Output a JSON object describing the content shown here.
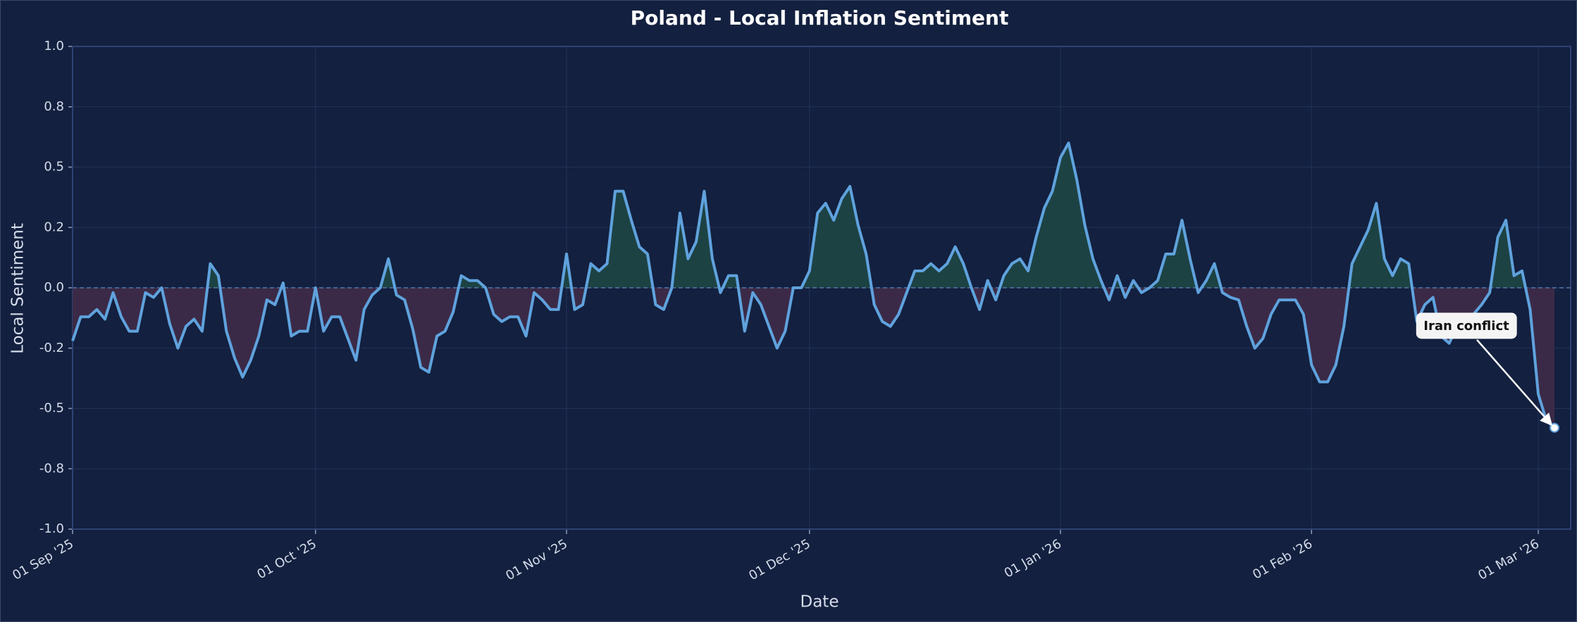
{
  "chart_data": {
    "type": "line",
    "title": "Poland - Local Inflation Sentiment",
    "x_label": "Date",
    "y_label": "Local Sentiment",
    "xlim": [
      "2025-09-01",
      "2026-03-05"
    ],
    "ylim": [
      -1,
      1
    ],
    "yticks": [
      {
        "value": -1,
        "label": "-1.0"
      },
      {
        "value": -0.75,
        "label": "-0.8"
      },
      {
        "value": -0.5,
        "label": "-0.5"
      },
      {
        "value": -0.25,
        "label": "-0.2"
      },
      {
        "value": 0,
        "label": "0.0"
      },
      {
        "value": 0.25,
        "label": "0.2"
      },
      {
        "value": 0.5,
        "label": "0.5"
      },
      {
        "value": 0.75,
        "label": "0.8"
      },
      {
        "value": 1,
        "label": "1.0"
      }
    ],
    "xticks": [
      {
        "value": "2025-09-01",
        "label": "01 Sep '25"
      },
      {
        "value": "2025-10-01",
        "label": "01 Oct '25"
      },
      {
        "value": "2025-11-01",
        "label": "01 Nov '25"
      },
      {
        "value": "2025-12-01",
        "label": "01 Dec '25"
      },
      {
        "value": "2026-01-01",
        "label": "01 Jan '26"
      },
      {
        "value": "2026-02-01",
        "label": "01 Feb '26"
      },
      {
        "value": "2026-03-01",
        "label": "01 Mar '26"
      }
    ],
    "grid": true,
    "positive_fill": "#1d4243",
    "negative_fill": "#3b2a47",
    "x": [
      "2025-09-01",
      "2025-09-02",
      "2025-09-03",
      "2025-09-04",
      "2025-09-05",
      "2025-09-06",
      "2025-09-07",
      "2025-09-08",
      "2025-09-09",
      "2025-09-10",
      "2025-09-11",
      "2025-09-12",
      "2025-09-13",
      "2025-09-14",
      "2025-09-15",
      "2025-09-16",
      "2025-09-17",
      "2025-09-18",
      "2025-09-19",
      "2025-09-20",
      "2025-09-21",
      "2025-09-22",
      "2025-09-23",
      "2025-09-24",
      "2025-09-25",
      "2025-09-26",
      "2025-09-27",
      "2025-09-28",
      "2025-09-29",
      "2025-09-30",
      "2025-10-01",
      "2025-10-02",
      "2025-10-03",
      "2025-10-04",
      "2025-10-05",
      "2025-10-06",
      "2025-10-07",
      "2025-10-08",
      "2025-10-09",
      "2025-10-10",
      "2025-10-11",
      "2025-10-12",
      "2025-10-13",
      "2025-10-14",
      "2025-10-15",
      "2025-10-16",
      "2025-10-17",
      "2025-10-18",
      "2025-10-19",
      "2025-10-20",
      "2025-10-21",
      "2025-10-22",
      "2025-10-23",
      "2025-10-24",
      "2025-10-25",
      "2025-10-26",
      "2025-10-27",
      "2025-10-28",
      "2025-10-29",
      "2025-10-30",
      "2025-10-31",
      "2025-11-01",
      "2025-11-02",
      "2025-11-03",
      "2025-11-04",
      "2025-11-05",
      "2025-11-06",
      "2025-11-07",
      "2025-11-08",
      "2025-11-09",
      "2025-11-10",
      "2025-11-11",
      "2025-11-12",
      "2025-11-13",
      "2025-11-14",
      "2025-11-15",
      "2025-11-16",
      "2025-11-17",
      "2025-11-18",
      "2025-11-19",
      "2025-11-20",
      "2025-11-21",
      "2025-11-22",
      "2025-11-23",
      "2025-11-24",
      "2025-11-25",
      "2025-11-26",
      "2025-11-27",
      "2025-11-28",
      "2025-11-29",
      "2025-11-30",
      "2025-12-01",
      "2025-12-02",
      "2025-12-03",
      "2025-12-04",
      "2025-12-05",
      "2025-12-06",
      "2025-12-07",
      "2025-12-08",
      "2025-12-09",
      "2025-12-10",
      "2025-12-11",
      "2025-12-12",
      "2025-12-13",
      "2025-12-14",
      "2025-12-15",
      "2025-12-16",
      "2025-12-17",
      "2025-12-18",
      "2025-12-19",
      "2025-12-20",
      "2025-12-21",
      "2025-12-22",
      "2025-12-23",
      "2025-12-24",
      "2025-12-25",
      "2025-12-26",
      "2025-12-27",
      "2025-12-28",
      "2025-12-29",
      "2025-12-30",
      "2025-12-31",
      "2026-01-01",
      "2026-01-02",
      "2026-01-03",
      "2026-01-04",
      "2026-01-05",
      "2026-01-06",
      "2026-01-07",
      "2026-01-08",
      "2026-01-09",
      "2026-01-10",
      "2026-01-11",
      "2026-01-12",
      "2026-01-13",
      "2026-01-14",
      "2026-01-15",
      "2026-01-16",
      "2026-01-17",
      "2026-01-18",
      "2026-01-19",
      "2026-01-20",
      "2026-01-21",
      "2026-01-22",
      "2026-01-23",
      "2026-01-24",
      "2026-01-25",
      "2026-01-26",
      "2026-01-27",
      "2026-01-28",
      "2026-01-29",
      "2026-01-30",
      "2026-01-31",
      "2026-02-01",
      "2026-02-02",
      "2026-02-03",
      "2026-02-04",
      "2026-02-05",
      "2026-02-06",
      "2026-02-07",
      "2026-02-08",
      "2026-02-09",
      "2026-02-10",
      "2026-02-11",
      "2026-02-12",
      "2026-02-13",
      "2026-02-14",
      "2026-02-15",
      "2026-02-16",
      "2026-02-17",
      "2026-02-18",
      "2026-02-19",
      "2026-02-20",
      "2026-02-21",
      "2026-02-22",
      "2026-02-23",
      "2026-02-24",
      "2026-02-25",
      "2026-02-26",
      "2026-02-27",
      "2026-02-28",
      "2026-03-01",
      "2026-03-02",
      "2026-03-03"
    ],
    "series": [
      {
        "name": "Local Sentiment",
        "color": "#5fa2dd",
        "values": [
          -0.22,
          -0.12,
          -0.12,
          -0.09,
          -0.13,
          -0.02,
          -0.12,
          -0.18,
          -0.18,
          -0.02,
          -0.04,
          0.0,
          -0.15,
          -0.25,
          -0.16,
          -0.13,
          -0.18,
          0.1,
          0.05,
          -0.18,
          -0.29,
          -0.37,
          -0.3,
          -0.2,
          -0.05,
          -0.07,
          0.02,
          -0.2,
          -0.18,
          -0.18,
          0.0,
          -0.18,
          -0.12,
          -0.12,
          -0.21,
          -0.3,
          -0.09,
          -0.03,
          0.0,
          0.12,
          -0.03,
          -0.05,
          -0.17,
          -0.33,
          -0.35,
          -0.2,
          -0.18,
          -0.1,
          0.05,
          0.03,
          0.03,
          0.0,
          -0.11,
          -0.14,
          -0.12,
          -0.12,
          -0.2,
          -0.02,
          -0.05,
          -0.09,
          -0.09,
          0.14,
          -0.09,
          -0.07,
          0.1,
          0.07,
          0.1,
          0.4,
          0.4,
          0.28,
          0.17,
          0.14,
          -0.07,
          -0.09,
          0.0,
          0.31,
          0.12,
          0.19,
          0.4,
          0.12,
          -0.02,
          0.05,
          0.05,
          -0.18,
          -0.02,
          -0.07,
          -0.16,
          -0.25,
          -0.18,
          0.0,
          0.0,
          0.07,
          0.31,
          0.35,
          0.28,
          0.37,
          0.42,
          0.26,
          0.14,
          -0.07,
          -0.14,
          -0.16,
          -0.11,
          -0.02,
          0.07,
          0.07,
          0.1,
          0.07,
          0.1,
          0.17,
          0.1,
          0.0,
          -0.09,
          0.03,
          -0.05,
          0.05,
          0.1,
          0.12,
          0.07,
          0.21,
          0.33,
          0.4,
          0.54,
          0.6,
          0.45,
          0.26,
          0.12,
          0.03,
          -0.05,
          0.05,
          -0.04,
          0.03,
          -0.02,
          0.0,
          0.03,
          0.14,
          0.14,
          0.28,
          0.12,
          -0.02,
          0.03,
          0.1,
          -0.02,
          -0.04,
          -0.05,
          -0.16,
          -0.25,
          -0.21,
          -0.11,
          -0.05,
          -0.05,
          -0.05,
          -0.11,
          -0.32,
          -0.39,
          -0.39,
          -0.32,
          -0.16,
          0.1,
          0.17,
          0.24,
          0.35,
          0.12,
          0.05,
          0.12,
          0.1,
          -0.14,
          -0.07,
          -0.04,
          -0.2,
          -0.23,
          -0.16,
          -0.11,
          -0.11,
          -0.07,
          -0.02,
          0.21,
          0.28,
          0.05,
          0.07,
          -0.09,
          -0.44,
          -0.55,
          -0.58
        ]
      }
    ],
    "annotations": [
      {
        "text": "Iran conflict",
        "x": "2026-03-03",
        "y": -0.58
      }
    ]
  }
}
